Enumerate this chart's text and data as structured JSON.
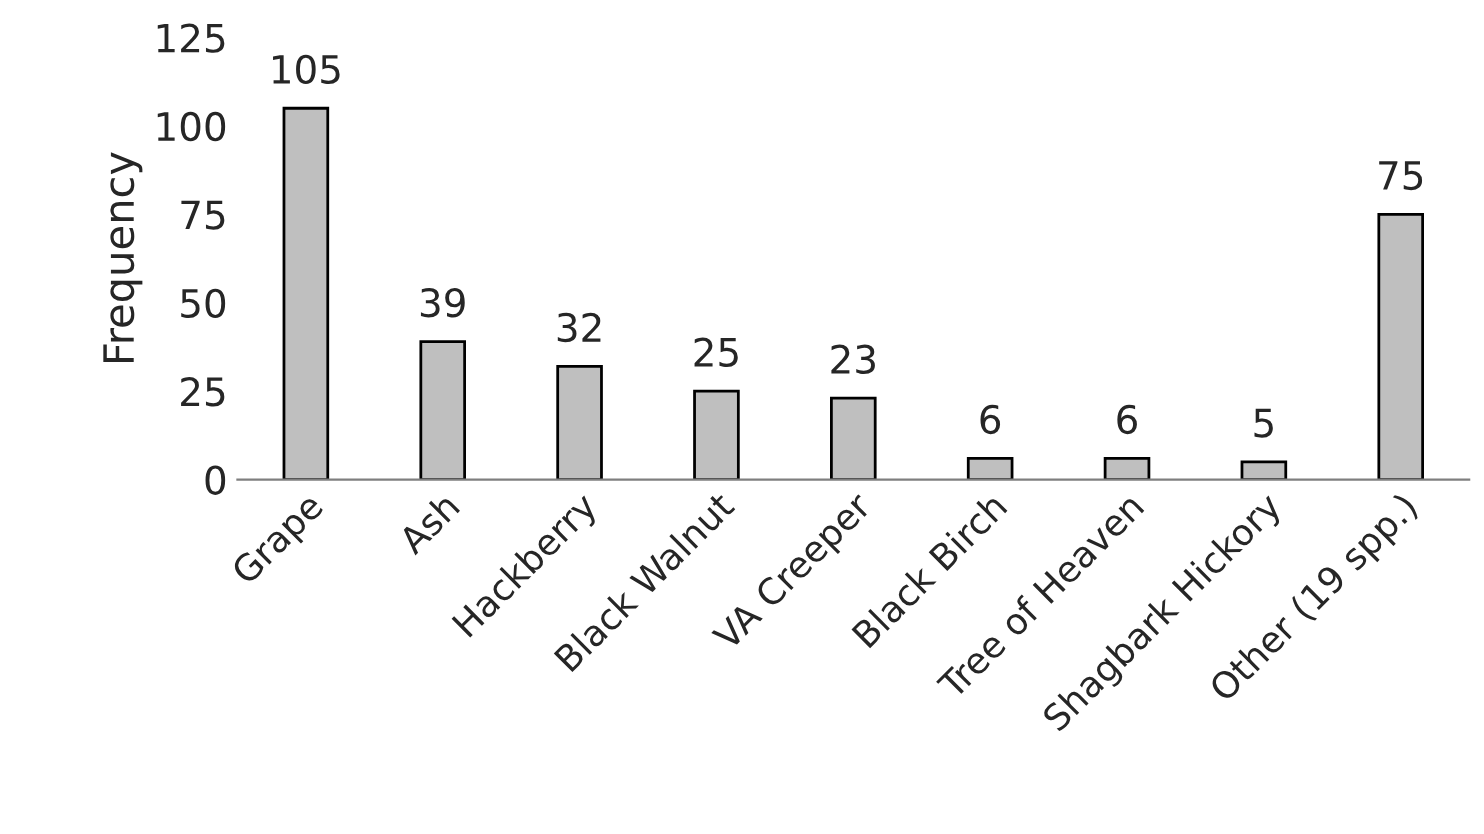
{
  "chart_data": {
    "type": "bar",
    "ylabel": "Frequency",
    "categories": [
      "Grape",
      "Ash",
      "Hackberry",
      "Black Walnut",
      "VA Creeper",
      "Black Birch",
      "Tree of Heaven",
      "Shagbark Hickory",
      "Other (19 spp.)"
    ],
    "values": [
      105,
      39,
      32,
      25,
      23,
      6,
      6,
      5,
      75
    ],
    "color": "#bfbfbf",
    "ylim": [
      0,
      125
    ],
    "yticks": [
      0,
      25,
      50,
      75,
      100,
      125
    ],
    "data_labels": true,
    "grid": false,
    "legend": false
  }
}
